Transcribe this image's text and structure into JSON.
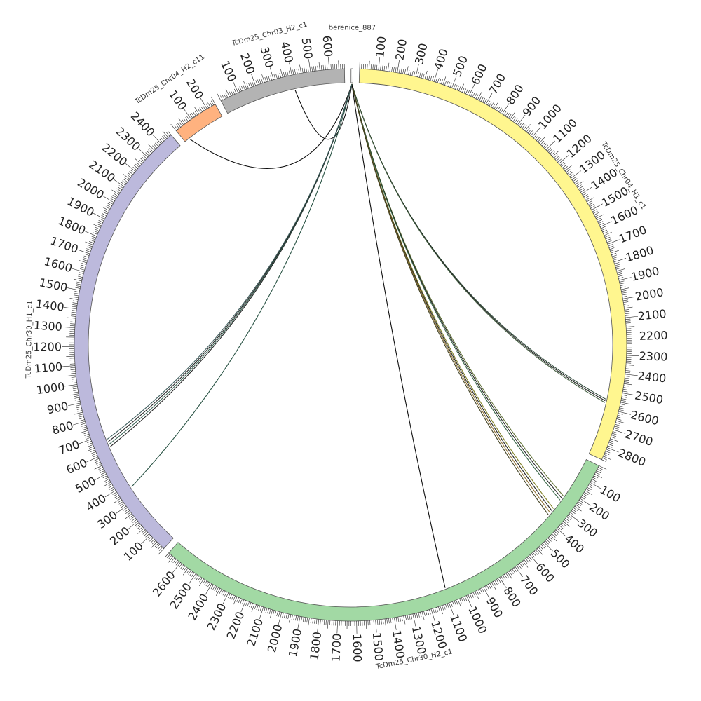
{
  "diagram": {
    "type": "circos",
    "segments": [
      {
        "name": "berenice_887",
        "length": 10,
        "color": "#ffffff",
        "ticks": []
      },
      {
        "name": "TcDm25_Chr04_H1_c1",
        "length": 2870,
        "color": "#fff68f",
        "ticks": [
          "100",
          "200",
          "300",
          "400",
          "500",
          "600",
          "700",
          "800",
          "900",
          "1000",
          "1100",
          "1200",
          "1300",
          "1400",
          "1500",
          "1600",
          "1700",
          "1800",
          "1900",
          "2000",
          "2100",
          "2200",
          "2300",
          "2400",
          "2500",
          "2600",
          "2700",
          "2800"
        ]
      },
      {
        "name": "TcDm25_Chr30_H2_c1",
        "length": 2680,
        "color": "#a2d9a4",
        "ticks": [
          "100",
          "200",
          "300",
          "400",
          "500",
          "600",
          "700",
          "800",
          "900",
          "1000",
          "1100",
          "1200",
          "1300",
          "1400",
          "1500",
          "1600",
          "1700",
          "1800",
          "1900",
          "2000",
          "2100",
          "2200",
          "2300",
          "2400",
          "2500",
          "2600"
        ]
      },
      {
        "name": "TcDm25_Chr30_H1_c1",
        "length": 2470,
        "color": "#bcb9dc",
        "ticks": [
          "100",
          "200",
          "300",
          "400",
          "500",
          "600",
          "700",
          "800",
          "900",
          "1000",
          "1100",
          "1200",
          "1300",
          "1400",
          "1500",
          "1600",
          "1700",
          "1800",
          "1900",
          "2000",
          "2100",
          "2200",
          "2300",
          "2400"
        ]
      },
      {
        "name": "TcDm25_Chr04_H2_c11",
        "length": 250,
        "color": "#ffb27f",
        "ticks": [
          "100",
          "200"
        ]
      },
      {
        "name": "TcDm25_Chr03_H2_c1",
        "length": 680,
        "color": "#b3b3b3",
        "ticks": [
          "100",
          "200",
          "300",
          "400",
          "500",
          "600"
        ]
      }
    ],
    "links": [
      {
        "to_segment": "TcDm25_Chr03_H2_c1",
        "to_pos": 400,
        "color": "#000000"
      },
      {
        "to_segment": "TcDm25_Chr04_H2_c11",
        "to_pos": 30,
        "color": "#000000"
      },
      {
        "to_segment": "TcDm25_Chr04_H1_c1",
        "to_pos": 2550,
        "color": "#2e4a3a"
      },
      {
        "to_segment": "TcDm25_Chr04_H1_c1",
        "to_pos": 2560,
        "color": "#1a1a1a"
      },
      {
        "to_segment": "TcDm25_Chr04_H1_c1",
        "to_pos": 2570,
        "color": "#3d5a3a"
      },
      {
        "to_segment": "TcDm25_Chr30_H2_c1",
        "to_pos": 240,
        "color": "#5a6b2e"
      },
      {
        "to_segment": "TcDm25_Chr30_H2_c1",
        "to_pos": 255,
        "color": "#1a1a1a"
      },
      {
        "to_segment": "TcDm25_Chr30_H2_c1",
        "to_pos": 270,
        "color": "#2f5f3f"
      },
      {
        "to_segment": "TcDm25_Chr30_H2_c1",
        "to_pos": 330,
        "color": "#7a7a1a"
      },
      {
        "to_segment": "TcDm25_Chr30_H2_c1",
        "to_pos": 345,
        "color": "#1a1a1a"
      },
      {
        "to_segment": "TcDm25_Chr30_H2_c1",
        "to_pos": 360,
        "color": "#8a6a2a"
      },
      {
        "to_segment": "TcDm25_Chr30_H2_c1",
        "to_pos": 375,
        "color": "#3a3a1a"
      },
      {
        "to_segment": "TcDm25_Chr30_H2_c1",
        "to_pos": 1090,
        "color": "#000000"
      },
      {
        "to_segment": "TcDm25_Chr30_H1_c1",
        "to_pos": 370,
        "color": "#1e4a3a"
      },
      {
        "to_segment": "TcDm25_Chr30_H1_c1",
        "to_pos": 625,
        "color": "#1a1a1a"
      },
      {
        "to_segment": "TcDm25_Chr30_H1_c1",
        "to_pos": 640,
        "color": "#2e5a4a"
      },
      {
        "to_segment": "TcDm25_Chr30_H1_c1",
        "to_pos": 655,
        "color": "#1a1a1a"
      },
      {
        "to_segment": "TcDm25_Chr30_H1_c1",
        "to_pos": 670,
        "color": "#3a5a5a"
      }
    ]
  }
}
